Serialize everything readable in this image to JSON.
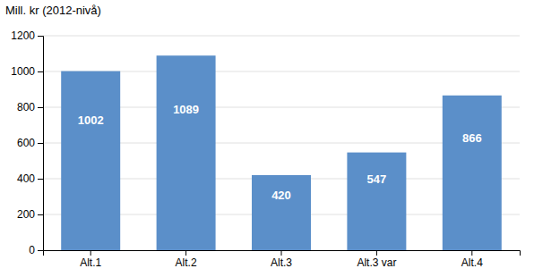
{
  "chart_data": {
    "type": "bar",
    "y_label": "Mill. kr (2012-nivå)",
    "categories": [
      "Alt.1",
      "Alt.2",
      "Alt.3",
      "Alt.3 var",
      "Alt.4"
    ],
    "values": [
      1002,
      1089,
      420,
      547,
      866
    ],
    "color": "#5b8fc9",
    "ylim": [
      0,
      1200
    ],
    "yticks": [
      0,
      200,
      400,
      600,
      800,
      1000,
      1200
    ],
    "grid": true,
    "data_labels": true
  }
}
